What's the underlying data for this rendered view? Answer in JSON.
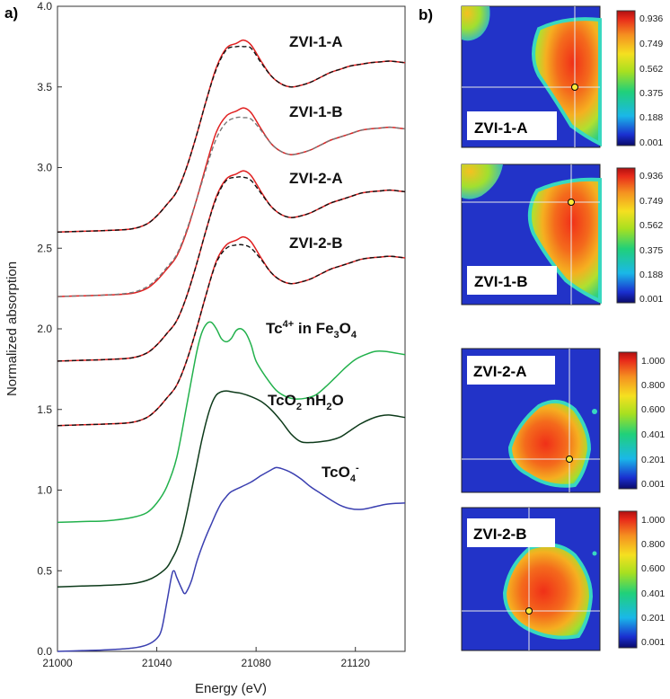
{
  "chart_data": [
    {
      "type": "line",
      "panel": "a)",
      "xlabel": "Energy (eV)",
      "ylabel": "Normalized absorption",
      "xlim": [
        21000,
        21140
      ],
      "ylim": [
        0.0,
        4.0
      ],
      "xticks": [
        "21000",
        "21040",
        "21080",
        "21120"
      ],
      "xtick_values": [
        21000,
        21040,
        21080,
        21120
      ],
      "yticks": [
        "0.0",
        "0.5",
        "1.0",
        "1.5",
        "2.0",
        "2.5",
        "3.0",
        "3.5",
        "4.0"
      ],
      "ytick_values": [
        0.0,
        0.5,
        1.0,
        1.5,
        2.0,
        2.5,
        3.0,
        3.5,
        4.0
      ],
      "grid": false,
      "series": [
        {
          "name": "TcO4-",
          "label_main": "TcO",
          "label_sub": "4",
          "label_sup": "-",
          "color": "#3a3fb0",
          "style": "solid",
          "x": [
            21000,
            21010,
            21020,
            21030,
            21036,
            21040,
            21042,
            21044,
            21046,
            21047,
            21048,
            21050,
            21051,
            21052,
            21054,
            21056,
            21058,
            21060,
            21062,
            21064,
            21066,
            21068,
            21070,
            21074,
            21078,
            21082,
            21086,
            21088,
            21090,
            21094,
            21098,
            21102,
            21106,
            21110,
            21114,
            21118,
            21122,
            21126,
            21130,
            21134,
            21140
          ],
          "y": [
            0.0,
            0.005,
            0.01,
            0.02,
            0.04,
            0.08,
            0.14,
            0.3,
            0.47,
            0.5,
            0.46,
            0.39,
            0.36,
            0.37,
            0.44,
            0.55,
            0.64,
            0.72,
            0.79,
            0.86,
            0.92,
            0.96,
            0.99,
            1.02,
            1.05,
            1.09,
            1.125,
            1.14,
            1.135,
            1.11,
            1.07,
            1.02,
            0.98,
            0.94,
            0.905,
            0.885,
            0.88,
            0.89,
            0.905,
            0.915,
            0.92
          ]
        },
        {
          "name": "TcO2 nH2O",
          "label_main": "TcO",
          "label_sub": "2",
          "label_tail": " nH",
          "label_sub2": "2",
          "label_tail2": "O",
          "color": "#0d3a1a",
          "style": "solid",
          "x": [
            21000,
            21010,
            21020,
            21030,
            21036,
            21040,
            21044,
            21046,
            21048,
            21050,
            21052,
            21054,
            21056,
            21058,
            21060,
            21062,
            21064,
            21066,
            21068,
            21070,
            21072,
            21074,
            21078,
            21082,
            21086,
            21090,
            21094,
            21098,
            21102,
            21106,
            21110,
            21114,
            21118,
            21122,
            21126,
            21130,
            21134,
            21140
          ],
          "y": [
            0.4,
            0.405,
            0.41,
            0.42,
            0.44,
            0.47,
            0.52,
            0.57,
            0.63,
            0.72,
            0.85,
            1.0,
            1.15,
            1.3,
            1.43,
            1.53,
            1.59,
            1.61,
            1.615,
            1.61,
            1.605,
            1.6,
            1.58,
            1.55,
            1.5,
            1.43,
            1.35,
            1.3,
            1.295,
            1.3,
            1.31,
            1.33,
            1.37,
            1.41,
            1.44,
            1.46,
            1.465,
            1.45
          ]
        },
        {
          "name": "Tc4+ in Fe3O4",
          "label_main": "Tc",
          "label_sup": "4+",
          "label_tail": " in Fe",
          "label_sub": "3",
          "label_tail2": "O",
          "label_sub2": "4",
          "color": "#22b14c",
          "style": "solid",
          "x": [
            21000,
            21010,
            21020,
            21030,
            21036,
            21040,
            21044,
            21048,
            21052,
            21056,
            21058,
            21060,
            21062,
            21064,
            21066,
            21068,
            21070,
            21072,
            21074,
            21076,
            21078,
            21080,
            21084,
            21088,
            21092,
            21096,
            21100,
            21104,
            21108,
            21112,
            21116,
            21120,
            21124,
            21128,
            21132,
            21136,
            21140
          ],
          "y": [
            0.8,
            0.805,
            0.81,
            0.83,
            0.86,
            0.92,
            1.02,
            1.2,
            1.52,
            1.85,
            1.97,
            2.03,
            2.04,
            2.0,
            1.94,
            1.92,
            1.94,
            1.99,
            2.0,
            1.97,
            1.9,
            1.8,
            1.7,
            1.62,
            1.58,
            1.565,
            1.57,
            1.59,
            1.64,
            1.7,
            1.76,
            1.81,
            1.84,
            1.86,
            1.86,
            1.85,
            1.84
          ]
        },
        {
          "name": "ZVI-2-B",
          "color": "#e02020",
          "style": "solid",
          "x": [
            21000,
            21010,
            21020,
            21030,
            21036,
            21040,
            21044,
            21048,
            21052,
            21056,
            21060,
            21064,
            21068,
            21072,
            21075,
            21078,
            21082,
            21086,
            21090,
            21094,
            21098,
            21102,
            21106,
            21110,
            21114,
            21118,
            21122,
            21126,
            21130,
            21134,
            21140
          ],
          "y": [
            1.4,
            1.405,
            1.41,
            1.42,
            1.45,
            1.5,
            1.57,
            1.65,
            1.8,
            2.0,
            2.22,
            2.42,
            2.52,
            2.55,
            2.57,
            2.54,
            2.44,
            2.35,
            2.3,
            2.28,
            2.29,
            2.31,
            2.34,
            2.37,
            2.39,
            2.41,
            2.43,
            2.44,
            2.445,
            2.45,
            2.44
          ]
        },
        {
          "name": "ZVI-2-B fit",
          "color": "#111111",
          "style": "dashed",
          "x": [
            21000,
            21010,
            21020,
            21030,
            21036,
            21040,
            21044,
            21048,
            21052,
            21056,
            21060,
            21064,
            21068,
            21072,
            21075,
            21078,
            21082,
            21086,
            21090,
            21094,
            21098,
            21102,
            21106,
            21110,
            21114,
            21118,
            21122,
            21126,
            21130,
            21134,
            21140
          ],
          "y": [
            1.4,
            1.405,
            1.41,
            1.42,
            1.45,
            1.5,
            1.57,
            1.65,
            1.8,
            2.0,
            2.22,
            2.41,
            2.5,
            2.52,
            2.52,
            2.5,
            2.43,
            2.35,
            2.3,
            2.28,
            2.29,
            2.31,
            2.34,
            2.37,
            2.39,
            2.41,
            2.43,
            2.44,
            2.445,
            2.45,
            2.44
          ]
        },
        {
          "name": "ZVI-2-A",
          "color": "#e02020",
          "style": "solid",
          "x": [
            21000,
            21010,
            21020,
            21030,
            21036,
            21040,
            21044,
            21048,
            21052,
            21056,
            21060,
            21064,
            21068,
            21072,
            21075,
            21078,
            21082,
            21086,
            21090,
            21094,
            21098,
            21102,
            21106,
            21110,
            21114,
            21118,
            21122,
            21126,
            21130,
            21134,
            21140
          ],
          "y": [
            1.8,
            1.805,
            1.81,
            1.82,
            1.85,
            1.9,
            1.97,
            2.05,
            2.2,
            2.4,
            2.62,
            2.82,
            2.93,
            2.96,
            2.98,
            2.95,
            2.85,
            2.76,
            2.71,
            2.69,
            2.7,
            2.72,
            2.75,
            2.78,
            2.8,
            2.82,
            2.84,
            2.85,
            2.855,
            2.86,
            2.85
          ]
        },
        {
          "name": "ZVI-2-A fit",
          "color": "#111111",
          "style": "dashed",
          "x": [
            21000,
            21010,
            21020,
            21030,
            21036,
            21040,
            21044,
            21048,
            21052,
            21056,
            21060,
            21064,
            21068,
            21072,
            21075,
            21078,
            21082,
            21086,
            21090,
            21094,
            21098,
            21102,
            21106,
            21110,
            21114,
            21118,
            21122,
            21126,
            21130,
            21134,
            21140
          ],
          "y": [
            1.8,
            1.805,
            1.81,
            1.82,
            1.85,
            1.9,
            1.97,
            2.05,
            2.2,
            2.4,
            2.62,
            2.81,
            2.92,
            2.94,
            2.94,
            2.92,
            2.84,
            2.76,
            2.71,
            2.69,
            2.7,
            2.72,
            2.75,
            2.78,
            2.8,
            2.82,
            2.84,
            2.85,
            2.855,
            2.86,
            2.85
          ]
        },
        {
          "name": "ZVI-1-B",
          "color": "#e02020",
          "style": "solid",
          "x": [
            21000,
            21010,
            21020,
            21030,
            21036,
            21040,
            21044,
            21048,
            21052,
            21056,
            21060,
            21064,
            21068,
            21072,
            21075,
            21078,
            21082,
            21086,
            21090,
            21094,
            21098,
            21102,
            21106,
            21110,
            21114,
            21118,
            21122,
            21126,
            21130,
            21134,
            21140
          ],
          "y": [
            2.2,
            2.205,
            2.21,
            2.22,
            2.25,
            2.3,
            2.37,
            2.45,
            2.6,
            2.8,
            3.02,
            3.22,
            3.32,
            3.35,
            3.37,
            3.34,
            3.24,
            3.15,
            3.1,
            3.08,
            3.09,
            3.11,
            3.14,
            3.17,
            3.19,
            3.21,
            3.23,
            3.24,
            3.245,
            3.25,
            3.24
          ]
        },
        {
          "name": "ZVI-1-B fit",
          "color": "#777777",
          "style": "dashed",
          "x": [
            21000,
            21010,
            21020,
            21030,
            21036,
            21040,
            21044,
            21048,
            21052,
            21056,
            21060,
            21064,
            21068,
            21072,
            21075,
            21078,
            21082,
            21086,
            21090,
            21094,
            21098,
            21102,
            21106,
            21110,
            21114,
            21118,
            21122,
            21126,
            21130,
            21134,
            21140
          ],
          "y": [
            2.2,
            2.205,
            2.21,
            2.225,
            2.26,
            2.31,
            2.38,
            2.46,
            2.61,
            2.8,
            3.0,
            3.18,
            3.28,
            3.31,
            3.31,
            3.3,
            3.23,
            3.15,
            3.1,
            3.08,
            3.09,
            3.11,
            3.14,
            3.17,
            3.19,
            3.21,
            3.23,
            3.24,
            3.245,
            3.25,
            3.24
          ]
        },
        {
          "name": "ZVI-1-A",
          "color": "#e02020",
          "style": "solid",
          "x": [
            21000,
            21010,
            21020,
            21030,
            21036,
            21040,
            21044,
            21048,
            21052,
            21056,
            21060,
            21064,
            21068,
            21072,
            21075,
            21078,
            21082,
            21086,
            21090,
            21094,
            21098,
            21102,
            21106,
            21110,
            21114,
            21118,
            21122,
            21126,
            21130,
            21134,
            21140
          ],
          "y": [
            2.6,
            2.605,
            2.61,
            2.62,
            2.65,
            2.7,
            2.77,
            2.85,
            3.0,
            3.2,
            3.42,
            3.62,
            3.74,
            3.77,
            3.79,
            3.76,
            3.66,
            3.57,
            3.52,
            3.5,
            3.51,
            3.53,
            3.56,
            3.59,
            3.61,
            3.63,
            3.64,
            3.65,
            3.655,
            3.66,
            3.65
          ]
        },
        {
          "name": "ZVI-1-A fit",
          "color": "#111111",
          "style": "dashed",
          "x": [
            21000,
            21010,
            21020,
            21030,
            21036,
            21040,
            21044,
            21048,
            21052,
            21056,
            21060,
            21064,
            21068,
            21072,
            21075,
            21078,
            21082,
            21086,
            21090,
            21094,
            21098,
            21102,
            21106,
            21110,
            21114,
            21118,
            21122,
            21126,
            21130,
            21134,
            21140
          ],
          "y": [
            2.6,
            2.605,
            2.61,
            2.62,
            2.65,
            2.7,
            2.77,
            2.85,
            3.0,
            3.2,
            3.42,
            3.61,
            3.73,
            3.75,
            3.75,
            3.74,
            3.65,
            3.57,
            3.52,
            3.5,
            3.51,
            3.53,
            3.56,
            3.59,
            3.61,
            3.63,
            3.64,
            3.65,
            3.655,
            3.66,
            3.65
          ]
        }
      ],
      "annotations": [
        "ZVI-1-A",
        "ZVI-1-B",
        "ZVI-2-A",
        "ZVI-2-B",
        "Tc4+ in Fe3O4",
        "TcO2 nH2O",
        "TcO4-"
      ]
    },
    {
      "type": "heatmap",
      "panel": "b)",
      "maps": [
        {
          "name": "ZVI-1-A",
          "colorbar_ticks": [
            "0.936",
            "0.749",
            "0.562",
            "0.375",
            "0.188",
            "0.001"
          ]
        },
        {
          "name": "ZVI-1-B",
          "colorbar_ticks": [
            "0.936",
            "0.749",
            "0.562",
            "0.375",
            "0.188",
            "0.001"
          ]
        },
        {
          "name": "ZVI-2-A",
          "colorbar_ticks": [
            "1.000",
            "0.800",
            "0.600",
            "0.401",
            "0.201",
            "0.001"
          ]
        },
        {
          "name": "ZVI-2-B",
          "colorbar_ticks": [
            "1.000",
            "0.800",
            "0.600",
            "0.401",
            "0.201",
            "0.001"
          ]
        }
      ]
    }
  ],
  "colors": {
    "map_background": "#2233c8",
    "crosshair": "#e8e8e8",
    "marker_fill": "#ffea3a"
  }
}
